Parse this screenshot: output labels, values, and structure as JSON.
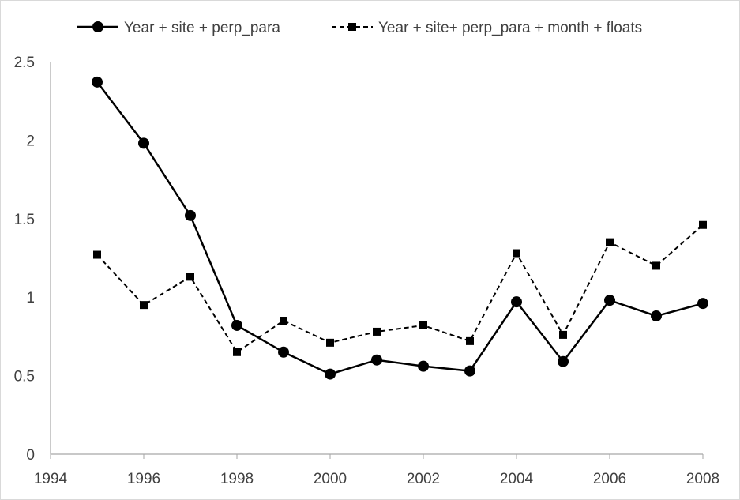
{
  "chart_data": {
    "type": "line",
    "title": "",
    "xlabel": "",
    "ylabel": "",
    "xlim": [
      1994,
      2008
    ],
    "ylim": [
      0,
      2.5
    ],
    "grid": false,
    "legend_position": "top",
    "x_ticks": [
      "1994",
      "1996",
      "1998",
      "2000",
      "2002",
      "2004",
      "2006",
      "2008"
    ],
    "y_ticks": [
      "0",
      "0.5",
      "1",
      "1.5",
      "2",
      "2.5"
    ],
    "x": [
      1995,
      1996,
      1997,
      1998,
      1999,
      2000,
      2001,
      2002,
      2003,
      2004,
      2005,
      2006,
      2007,
      2008
    ],
    "series": [
      {
        "name": "Year + site + perp_para",
        "style": "solid",
        "marker": "circle",
        "color": "#000000",
        "values": [
          2.37,
          1.98,
          1.52,
          0.82,
          0.65,
          0.51,
          0.6,
          0.56,
          0.53,
          0.97,
          0.59,
          0.98,
          0.88,
          0.96
        ]
      },
      {
        "name": "Year + site+ perp_para + month + floats",
        "style": "dashed",
        "marker": "square",
        "color": "#000000",
        "values": [
          1.27,
          0.95,
          1.13,
          0.65,
          0.85,
          0.71,
          0.78,
          0.82,
          0.72,
          1.28,
          0.76,
          1.35,
          1.2,
          1.46
        ]
      }
    ]
  }
}
